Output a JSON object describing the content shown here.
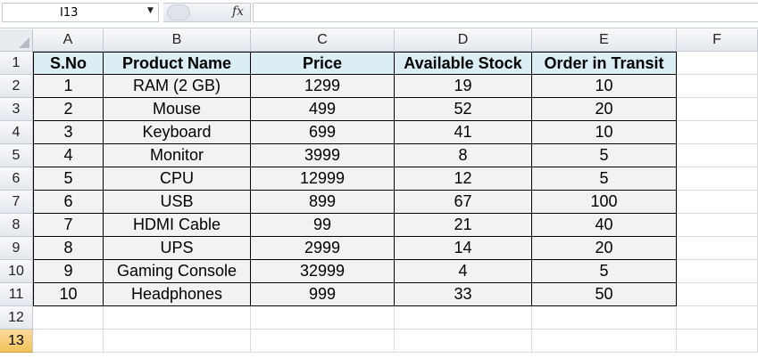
{
  "name_box": {
    "value": "I13"
  },
  "formula_bar": {
    "fx_label": "fx",
    "value": ""
  },
  "columns": [
    "A",
    "B",
    "C",
    "D",
    "E",
    "F"
  ],
  "rows": [
    "1",
    "2",
    "3",
    "4",
    "5",
    "6",
    "7",
    "8",
    "9",
    "10",
    "11",
    "12",
    "13"
  ],
  "active_row": "13",
  "table": {
    "headers": [
      "S.No",
      "Product Name",
      "Price",
      "Available Stock",
      "Order in Transit"
    ],
    "rows": [
      [
        "1",
        "RAM (2 GB)",
        "1299",
        "19",
        "10"
      ],
      [
        "2",
        "Mouse",
        "499",
        "52",
        "20"
      ],
      [
        "3",
        "Keyboard",
        "699",
        "41",
        "10"
      ],
      [
        "4",
        "Monitor",
        "3999",
        "8",
        "5"
      ],
      [
        "5",
        "CPU",
        "12999",
        "12",
        "5"
      ],
      [
        "6",
        "USB",
        "899",
        "67",
        "100"
      ],
      [
        "7",
        "HDMI Cable",
        "99",
        "21",
        "40"
      ],
      [
        "8",
        "UPS",
        "2999",
        "14",
        "20"
      ],
      [
        "9",
        "Gaming Console",
        "32999",
        "4",
        "5"
      ],
      [
        "10",
        "Headphones",
        "999",
        "33",
        "50"
      ]
    ]
  },
  "colors": {
    "header_fill": "#daeef3",
    "body_fill": "#f2f2f2",
    "active_row_header": "#f2c35a"
  }
}
